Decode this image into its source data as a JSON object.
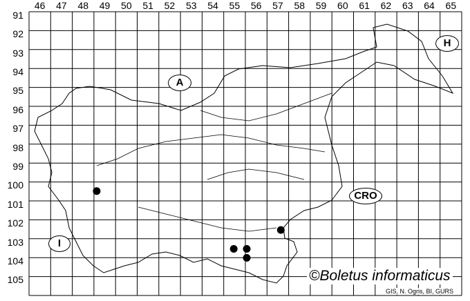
{
  "columns": [
    "46",
    "47",
    "48",
    "49",
    "50",
    "51",
    "52",
    "53",
    "54",
    "55",
    "56",
    "57",
    "58",
    "59",
    "60",
    "61",
    "62",
    "63",
    "64",
    "65"
  ],
  "rows": [
    "91",
    "92",
    "93",
    "94",
    "95",
    "96",
    "97",
    "98",
    "99",
    "100",
    "101",
    "102",
    "103",
    "104",
    "105"
  ],
  "countries": [
    {
      "code": "A"
    },
    {
      "code": "H"
    },
    {
      "code": "CRO"
    },
    {
      "code": "I"
    }
  ],
  "records": [
    {
      "col": "49",
      "row": "100"
    },
    {
      "col": "55",
      "row": "103"
    },
    {
      "col": "56",
      "row": "103"
    },
    {
      "col": "56",
      "row": "103"
    },
    {
      "col": "57",
      "row": "102"
    }
  ],
  "credit": "©Boletus informaticus",
  "source": "GIS, N. Ogris, BI, GURS",
  "colors": {
    "grid": "#000000",
    "dot": "#000000",
    "border": "#000000"
  }
}
